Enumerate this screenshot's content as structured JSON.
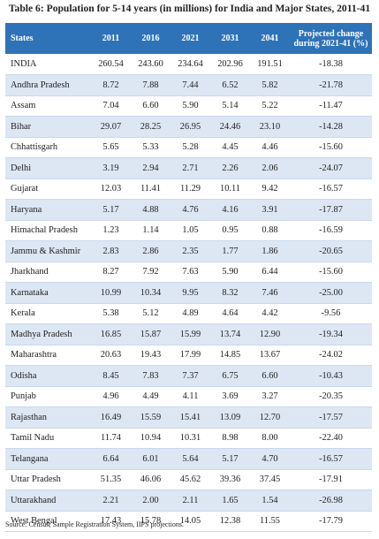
{
  "title": "Table 6: Population for 5-14 years (in millions) for India and Major States, 2011-41",
  "header": {
    "states": "States",
    "y2011": "2011",
    "y2016": "2016",
    "y2021": "2021",
    "y2031": "2031",
    "y2041": "2041",
    "change_line1": "Projected change",
    "change_line2": "during 2021-41 (%)"
  },
  "rows": [
    {
      "state": "INDIA",
      "v2011": "260.54",
      "v2016": "243.60",
      "v2021": "234.64",
      "v2031": "202.96",
      "v2041": "191.51",
      "change": "-18.38"
    },
    {
      "state": "Andhra Pradesh",
      "v2011": "8.72",
      "v2016": "7.88",
      "v2021": "7.44",
      "v2031": "6.52",
      "v2041": "5.82",
      "change": "-21.78"
    },
    {
      "state": "Assam",
      "v2011": "7.04",
      "v2016": "6.60",
      "v2021": "5.90",
      "v2031": "5.14",
      "v2041": "5.22",
      "change": "-11.47"
    },
    {
      "state": "Bihar",
      "v2011": "29.07",
      "v2016": "28.25",
      "v2021": "26.95",
      "v2031": "24.46",
      "v2041": "23.10",
      "change": "-14.28"
    },
    {
      "state": "Chhattisgarh",
      "v2011": "5.65",
      "v2016": "5.33",
      "v2021": "5.28",
      "v2031": "4.45",
      "v2041": "4.46",
      "change": "-15.60"
    },
    {
      "state": "Delhi",
      "v2011": "3.19",
      "v2016": "2.94",
      "v2021": "2.71",
      "v2031": "2.26",
      "v2041": "2.06",
      "change": "-24.07"
    },
    {
      "state": "Gujarat",
      "v2011": "12.03",
      "v2016": "11.41",
      "v2021": "11.29",
      "v2031": "10.11",
      "v2041": "9.42",
      "change": "-16.57"
    },
    {
      "state": "Haryana",
      "v2011": "5.17",
      "v2016": "4.88",
      "v2021": "4.76",
      "v2031": "4.16",
      "v2041": "3.91",
      "change": "-17.87"
    },
    {
      "state": "Himachal Pradesh",
      "v2011": "1.23",
      "v2016": "1.14",
      "v2021": "1.05",
      "v2031": "0.95",
      "v2041": "0.88",
      "change": "-16.59"
    },
    {
      "state": "Jammu & Kashmir",
      "v2011": "2.83",
      "v2016": "2.86",
      "v2021": "2.35",
      "v2031": "1.77",
      "v2041": "1.86",
      "change": "-20.65"
    },
    {
      "state": "Jharkhand",
      "v2011": "8.27",
      "v2016": "7.92",
      "v2021": "7.63",
      "v2031": "5.90",
      "v2041": "6.44",
      "change": "-15.60"
    },
    {
      "state": "Karnataka",
      "v2011": "10.99",
      "v2016": "10.34",
      "v2021": "9.95",
      "v2031": "8.32",
      "v2041": "7.46",
      "change": "-25.00"
    },
    {
      "state": "Kerala",
      "v2011": "5.38",
      "v2016": "5.12",
      "v2021": "4.89",
      "v2031": "4.64",
      "v2041": "4.42",
      "change": "-9.56"
    },
    {
      "state": "Madhya Pradesh",
      "v2011": "16.85",
      "v2016": "15.87",
      "v2021": "15.99",
      "v2031": "13.74",
      "v2041": "12.90",
      "change": "-19.34"
    },
    {
      "state": "Maharashtra",
      "v2011": "20.63",
      "v2016": "19.43",
      "v2021": "17.99",
      "v2031": "14.85",
      "v2041": "13.67",
      "change": "-24.02"
    },
    {
      "state": "Odisha",
      "v2011": "8.45",
      "v2016": "7.83",
      "v2021": "7.37",
      "v2031": "6.75",
      "v2041": "6.60",
      "change": "-10.43"
    },
    {
      "state": "Punjab",
      "v2011": "4.96",
      "v2016": "4.49",
      "v2021": "4.11",
      "v2031": "3.69",
      "v2041": "3.27",
      "change": "-20.35"
    },
    {
      "state": "Rajasthan",
      "v2011": "16.49",
      "v2016": "15.59",
      "v2021": "15.41",
      "v2031": "13.09",
      "v2041": "12.70",
      "change": "-17.57"
    },
    {
      "state": "Tamil Nadu",
      "v2011": "11.74",
      "v2016": "10.94",
      "v2021": "10.31",
      "v2031": "8.98",
      "v2041": "8.00",
      "change": "-22.40"
    },
    {
      "state": "Telangana",
      "v2011": "6.64",
      "v2016": "6.01",
      "v2021": "5.64",
      "v2031": "5.17",
      "v2041": "4.70",
      "change": "-16.57"
    },
    {
      "state": "Uttar Pradesh",
      "v2011": "51.35",
      "v2016": "46.06",
      "v2021": "45.62",
      "v2031": "39.36",
      "v2041": "37.45",
      "change": "-17.91"
    },
    {
      "state": "Uttarakhand",
      "v2011": "2.21",
      "v2016": "2.00",
      "v2021": "2.11",
      "v2031": "1.65",
      "v2041": "1.54",
      "change": "-26.98"
    },
    {
      "state": "West Bengal",
      "v2011": "17.43",
      "v2016": "15.78",
      "v2021": "14.05",
      "v2031": "12.38",
      "v2041": "11.55",
      "change": "-17.79"
    }
  ],
  "source": "Source: Census, Sample Registration System, IIPS projections.",
  "colors": {
    "header_bg": "#2e72b8",
    "stripe": "#dde7f4"
  }
}
